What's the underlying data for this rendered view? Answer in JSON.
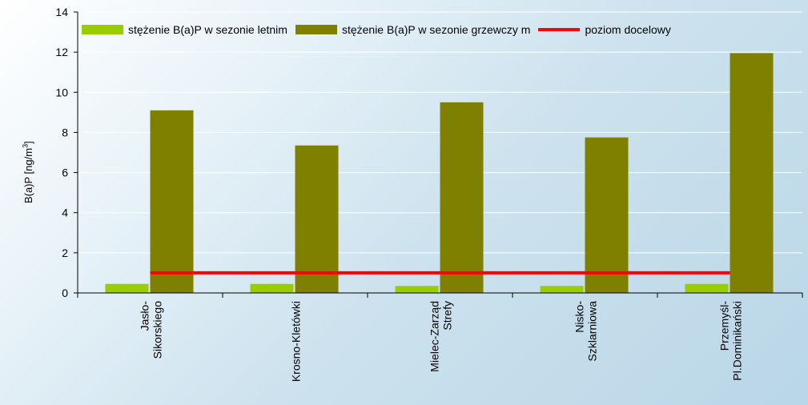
{
  "chart_data": {
    "type": "bar",
    "title": "",
    "xlabel": "",
    "ylabel": "B(a)P [ng/m",
    "ylabel_sup": "3",
    "ylabel_close": "]",
    "ylim": [
      0,
      14
    ],
    "yticks": [
      0,
      2,
      4,
      6,
      8,
      10,
      12,
      14
    ],
    "grid": true,
    "legend_position": "top",
    "categories": [
      [
        "Jasło-",
        "Sikorskiego"
      ],
      [
        "Krosno-Kletówki"
      ],
      [
        "Mielec-Zarząd",
        "Strefy"
      ],
      [
        "Nisko-",
        "Szklarniowa"
      ],
      [
        "Przemyśl-",
        "Pl.Dominikański"
      ]
    ],
    "series": [
      {
        "name": "stężenie B(a)P w sezonie letnim",
        "color": "#9acd00",
        "values": [
          0.45,
          0.45,
          0.35,
          0.35,
          0.45
        ]
      },
      {
        "name": "stężenie B(a)P w sezonie grzewczy m",
        "color": "#808000",
        "values": [
          9.1,
          7.35,
          9.5,
          7.75,
          11.95
        ]
      }
    ],
    "reference_line": {
      "name": "poziom docelowy",
      "value": 1,
      "color": "#ff0000"
    }
  }
}
